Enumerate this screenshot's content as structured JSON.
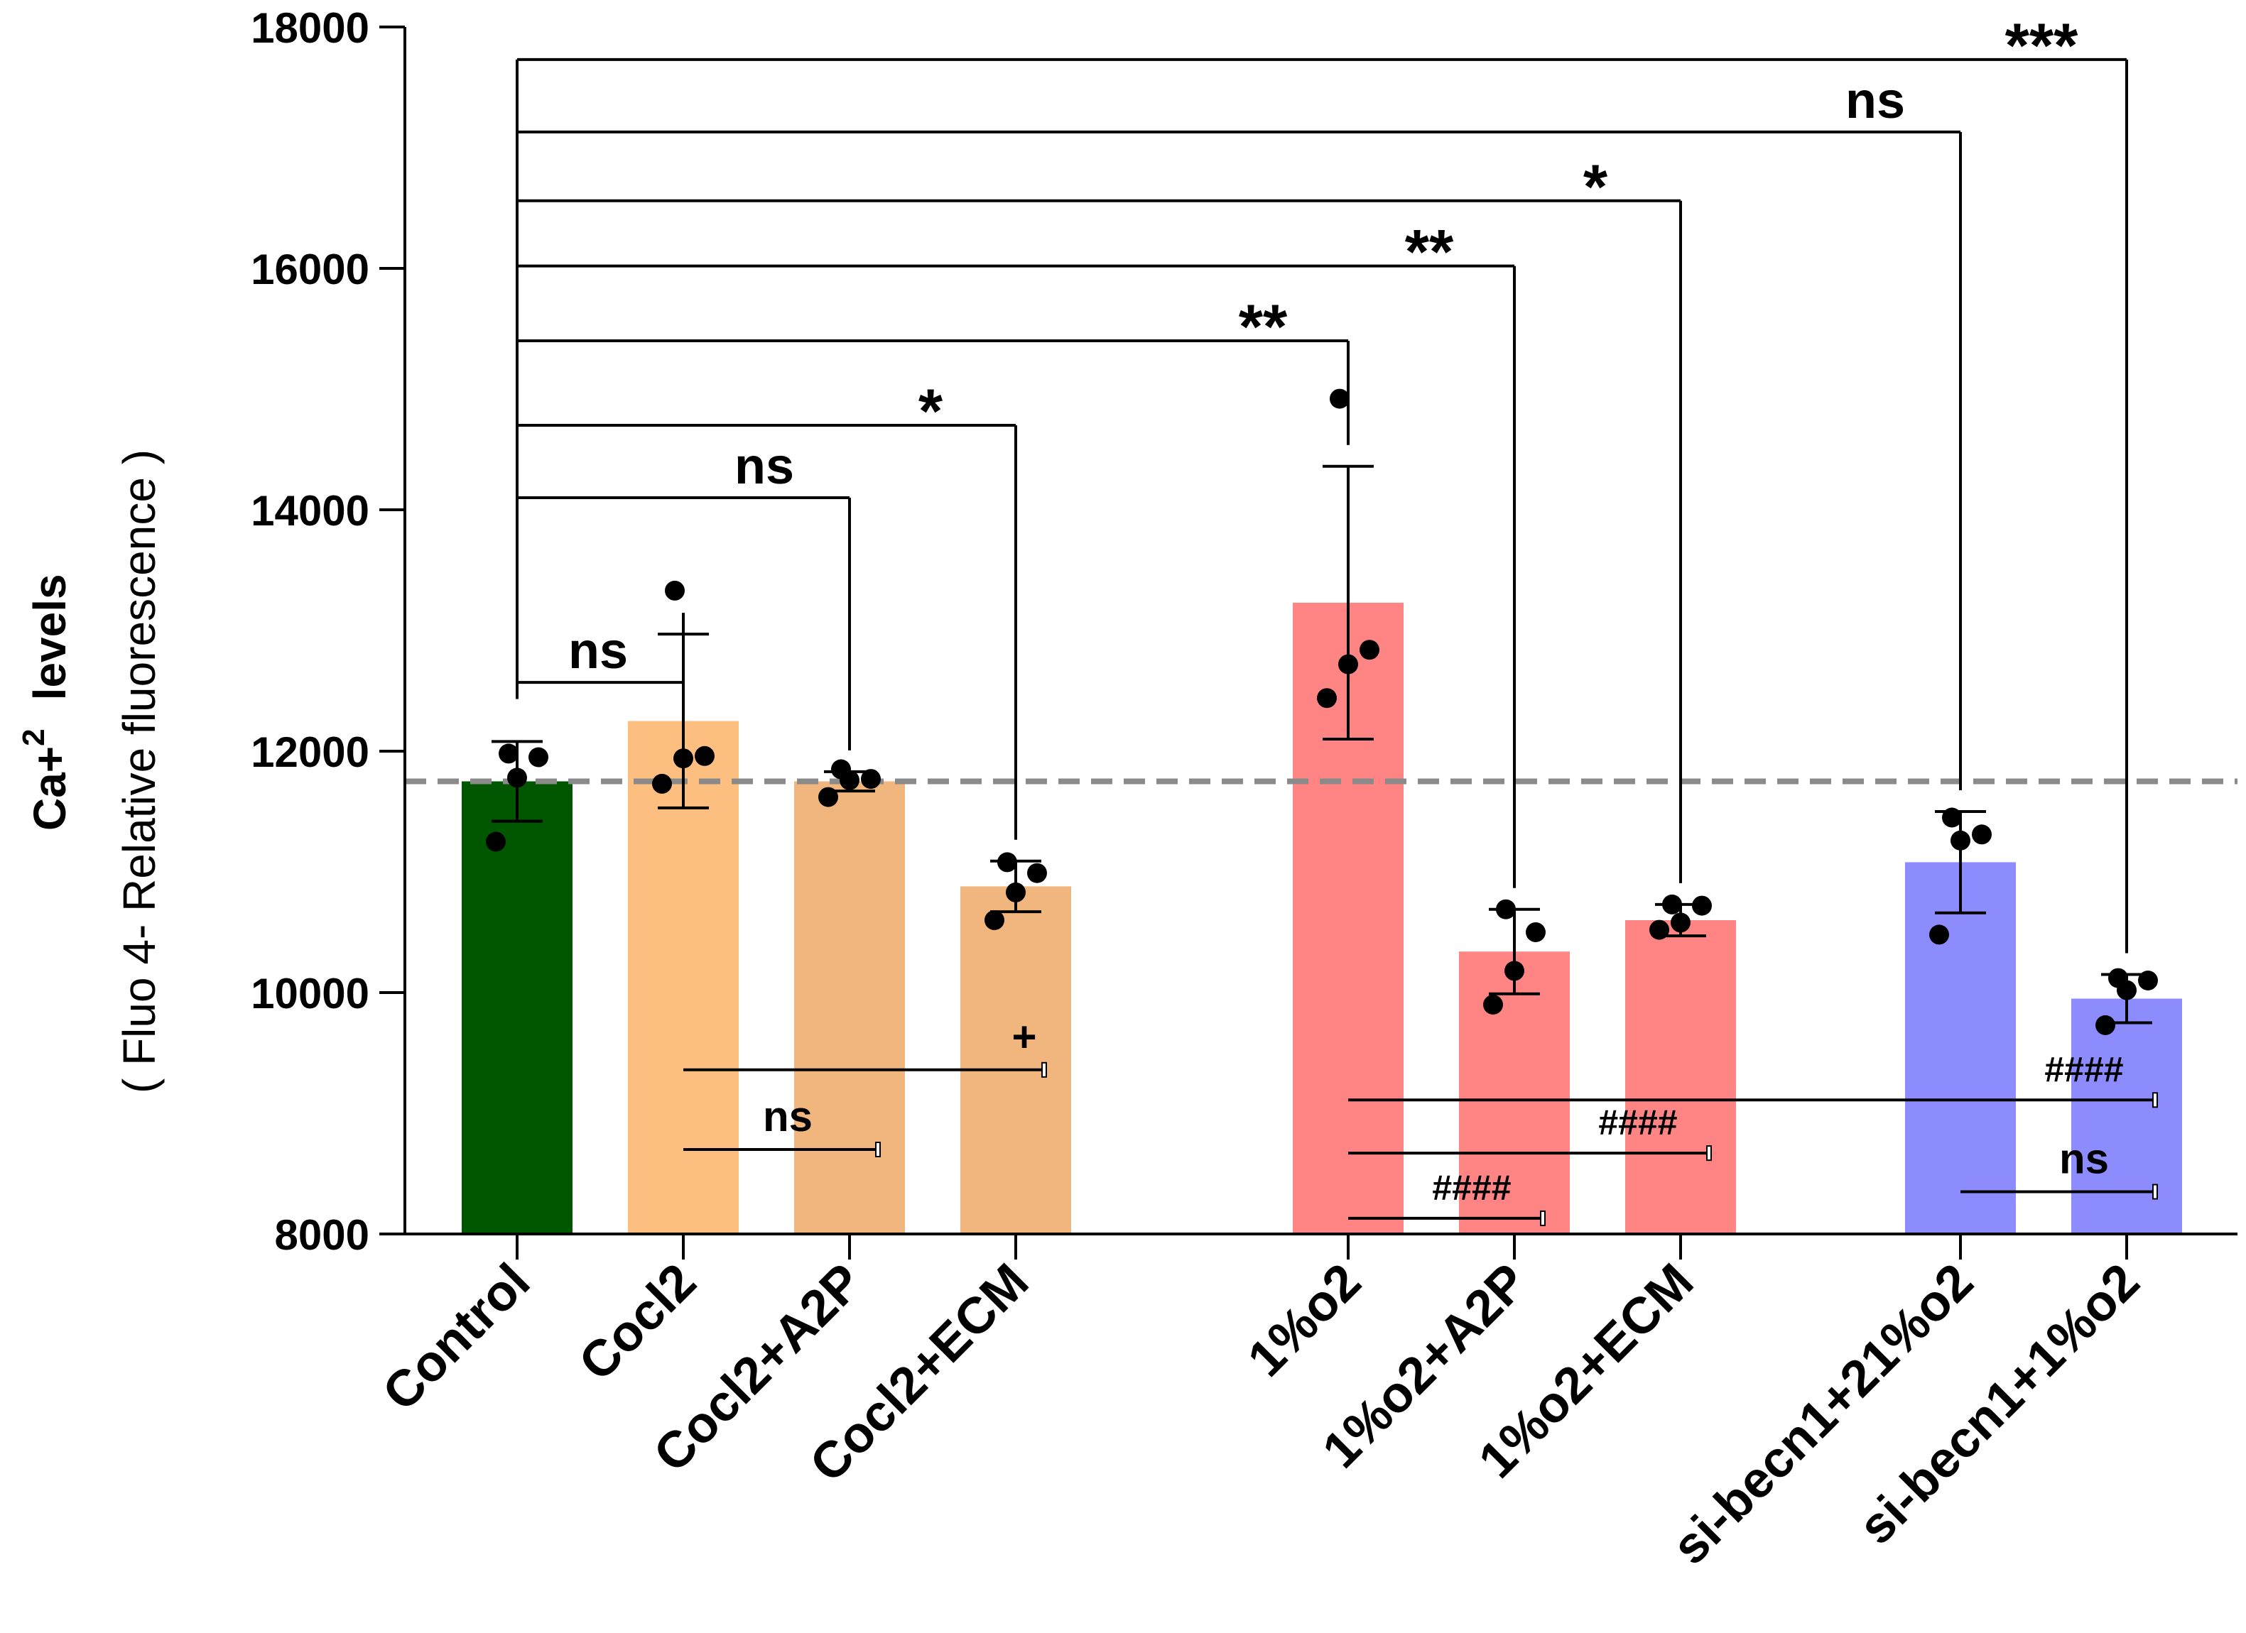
{
  "chart_data": {
    "type": "bar",
    "title": "",
    "ylabel_main": "Ca+",
    "ylabel_sup": "2",
    "ylabel_suffix": "levels",
    "ylabel_sub": "( Fluo 4- Relative fluorescence )",
    "xlabel": "",
    "ylim": [
      8000,
      18000
    ],
    "yticks": [
      "8000",
      "10000",
      "12000",
      "14000",
      "16000",
      "18000"
    ],
    "ytick_values": [
      8000,
      10000,
      12000,
      14000,
      16000,
      18000
    ],
    "reference_line": 11750,
    "categories": [
      "Control",
      "Cocl2",
      "Cocl2+A2P",
      "Cocl2+ECM",
      "1%o2",
      "1%o2+A2P",
      "1%o2+ECM",
      "si-becn1+21%o2",
      "si-becn1+1%o2"
    ],
    "values": [
      11750,
      12250,
      11750,
      10880,
      13230,
      10340,
      10600,
      11080,
      9950
    ],
    "sd": [
      330,
      720,
      80,
      210,
      1130,
      350,
      130,
      420,
      200
    ],
    "points": [
      [
        11250,
        11780,
        11950,
        11980
      ],
      [
        11730,
        11940,
        11960,
        13330
      ],
      [
        11620,
        11760,
        11770,
        11850
      ],
      [
        10600,
        10830,
        10990,
        11080
      ],
      [
        12440,
        12720,
        12840,
        14920
      ],
      [
        9900,
        10180,
        10500,
        10690
      ],
      [
        10520,
        10580,
        10720,
        10730
      ],
      [
        10480,
        11260,
        11310,
        11450
      ],
      [
        9730,
        10020,
        10100,
        10120
      ]
    ],
    "colors": [
      "#005700",
      "#fdbf80",
      "#f0b67d",
      "#f0b67d",
      "#ff8585",
      "#ff8585",
      "#ff8585",
      "#8c8cff",
      "#8c8cff"
    ],
    "brackets": [
      {
        "from": 0,
        "to": 1,
        "y": 12570,
        "label": "ns"
      },
      {
        "from": 0,
        "to": 2,
        "y": 14100,
        "label": "ns"
      },
      {
        "from": 0,
        "to": 3,
        "y": 14700,
        "label": "*"
      },
      {
        "from": 0,
        "to": 4,
        "y": 15400,
        "label": "**"
      },
      {
        "from": 0,
        "to": 5,
        "y": 16020,
        "label": "**"
      },
      {
        "from": 0,
        "to": 6,
        "y": 16560,
        "label": "*"
      },
      {
        "from": 0,
        "to": 7,
        "y": 17130,
        "label": "ns"
      },
      {
        "from": 0,
        "to": 8,
        "y": 17730,
        "label": "***"
      }
    ],
    "bottom_comparisons": [
      {
        "from": 1,
        "to": 3,
        "y": 9360,
        "label": "+"
      },
      {
        "from": 1,
        "to": 2,
        "y": 8700,
        "label": "ns"
      },
      {
        "from": 4,
        "to": 8,
        "y": 9110,
        "label": "####"
      },
      {
        "from": 4,
        "to": 6,
        "y": 8670,
        "label": "####"
      },
      {
        "from": 4,
        "to": 5,
        "y": 8130,
        "label": "####"
      },
      {
        "from": 7,
        "to": 8,
        "y": 8350,
        "label": "ns"
      }
    ]
  }
}
